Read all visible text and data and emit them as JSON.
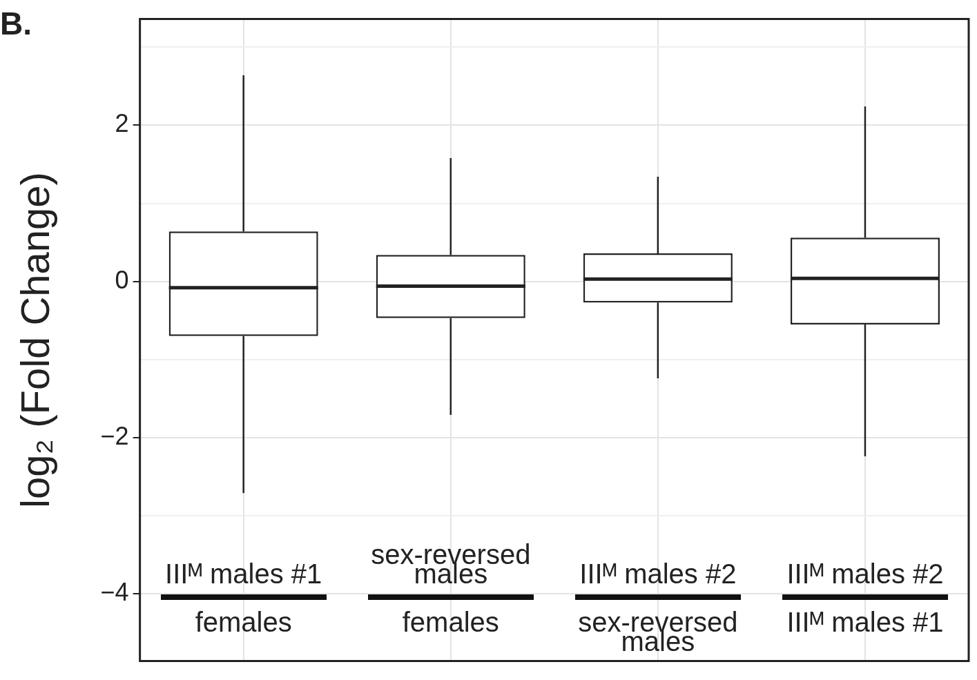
{
  "chart_data": {
    "type": "box",
    "ylabel": "log₂ (Fold Change)",
    "annotations": [
      "B."
    ],
    "categories": [
      "IIIᴹ males #1\nfemales",
      "sex-reversed males\nfemales",
      "IIIᴹ males #2\nsex-reversed males",
      "IIIᴹ males #2\nIIIᴹ males #1"
    ],
    "boxes": [
      {
        "low": -2.71,
        "q1": -0.7,
        "median": -0.08,
        "q3": 0.64,
        "high": 2.64
      },
      {
        "low": -1.71,
        "q1": -0.47,
        "median": -0.06,
        "q3": 0.34,
        "high": 1.58
      },
      {
        "low": -1.24,
        "q1": -0.27,
        "median": 0.03,
        "q3": 0.36,
        "high": 1.34
      },
      {
        "low": -2.24,
        "q1": -0.55,
        "median": 0.04,
        "q3": 0.56,
        "high": 2.24
      }
    ],
    "ylim": [
      -4.86,
      3.36
    ],
    "yticks": [
      {
        "value": 3,
        "label": null
      },
      2,
      {
        "value": 1,
        "label": null
      },
      0,
      {
        "value": -1,
        "label": null
      },
      -2,
      {
        "value": -3,
        "label": null
      },
      -4
    ],
    "grid": true
  }
}
